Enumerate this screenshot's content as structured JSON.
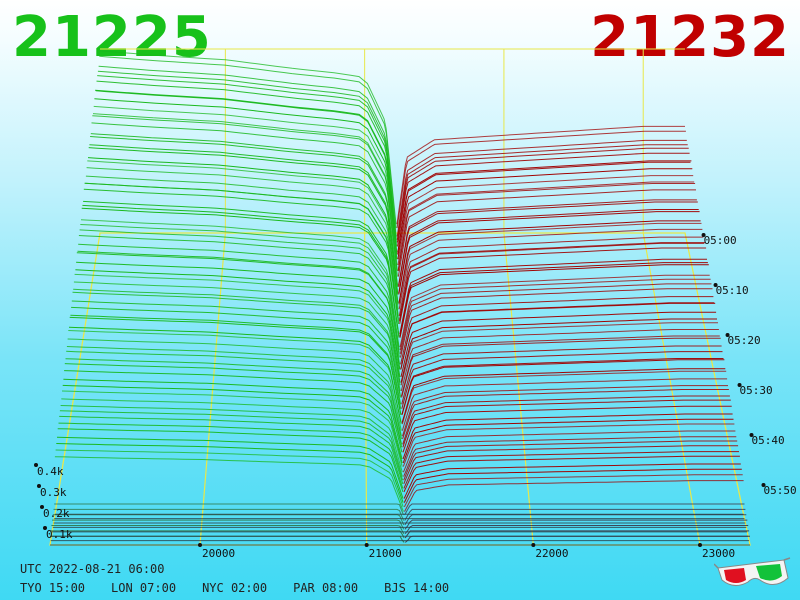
{
  "header": {
    "bid_price": "21225",
    "ask_price": "21232",
    "bid_color": "#17c11a",
    "ask_color": "#c00000"
  },
  "footer": {
    "utc": "UTC 2022-08-21 06:00",
    "zones": [
      "TYO 15:00",
      "LON 07:00",
      "NYC 02:00",
      "PAR 08:00",
      "BJS 14:00"
    ]
  },
  "icons": {
    "glasses": "3d-glasses-icon"
  },
  "chart_data": {
    "type": "area",
    "x": {
      "label": "",
      "range": [
        19100,
        23300
      ],
      "ticks": [
        20000,
        21000,
        22000,
        23000
      ],
      "tick_labels": [
        "20000",
        "21000",
        "22000",
        "23000"
      ]
    },
    "y": {
      "label": "",
      "range": [
        0,
        0.45
      ],
      "ticks": [
        0.1,
        0.2,
        0.3,
        0.4
      ],
      "tick_labels": [
        "0.1k",
        "0.2k",
        "0.3k",
        "0.4k"
      ]
    },
    "time": {
      "label": "",
      "ticks": [
        0,
        10,
        20,
        30,
        40,
        50
      ],
      "tick_labels": [
        "05:00",
        "05:10",
        "05:20",
        "05:30",
        "05:40",
        "05:50"
      ],
      "snapshots": 72
    },
    "mid_price": 21228.5,
    "depth_profile": {
      "bid": {
        "name": "",
        "color": "#18b81c",
        "x": [
          19100,
          19500,
          20000,
          20500,
          20800,
          21000,
          21150,
          21225
        ],
        "y": [
          0.41,
          0.4,
          0.39,
          0.37,
          0.36,
          0.35,
          0.25,
          0.02
        ]
      },
      "ask": {
        "name": "",
        "color": "#a00000",
        "x": [
          21232,
          21300,
          21500,
          22000,
          22500,
          23000,
          23300
        ],
        "y": [
          0.02,
          0.17,
          0.21,
          0.22,
          0.23,
          0.24,
          0.24
        ]
      }
    },
    "grid": true,
    "legend": "none"
  }
}
